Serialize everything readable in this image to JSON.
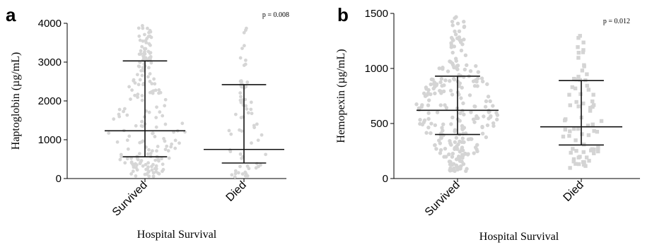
{
  "chart_data": [
    {
      "panel": "a",
      "type": "scatter",
      "subtype": "dot-plot with median and interquartile range",
      "ylabel": "Haptoglobin (µg/mL)",
      "xlabel": "Hospital Survival",
      "yticks": [
        "0",
        "1000",
        "2000",
        "3000",
        "4000"
      ],
      "ylim": [
        0,
        4000
      ],
      "categories": [
        "Survived",
        "Died"
      ],
      "annotation": "p = 0.008",
      "marker": "circle",
      "color": "#d6d6d6",
      "series": [
        {
          "category": "Survived",
          "median": 1230,
          "q1": 560,
          "q3": 3030,
          "n_points": 210,
          "max": 3960
        },
        {
          "category": "Died",
          "median": 750,
          "q1": 400,
          "q3": 2420,
          "n_points": 70,
          "max": 3880
        }
      ]
    },
    {
      "panel": "b",
      "type": "scatter",
      "subtype": "dot-plot with median and interquartile range",
      "ylabel": "Hemopexin (µg/mL)",
      "xlabel": "Hospital Survival",
      "yticks": [
        "0",
        "500",
        "1000",
        "1500"
      ],
      "ylim": [
        0,
        1500
      ],
      "categories": [
        "Survived",
        "Died"
      ],
      "annotation": "p = 0.012",
      "marker": "circle",
      "marker_died": "square",
      "color": "#d4d4d4",
      "series": [
        {
          "category": "Survived",
          "median": 620,
          "q1": 400,
          "q3": 930,
          "n_points": 260,
          "max": 1490,
          "min": 60
        },
        {
          "category": "Died",
          "median": 470,
          "q1": 305,
          "q3": 890,
          "n_points": 75,
          "max": 1350,
          "min": 80
        }
      ]
    }
  ]
}
